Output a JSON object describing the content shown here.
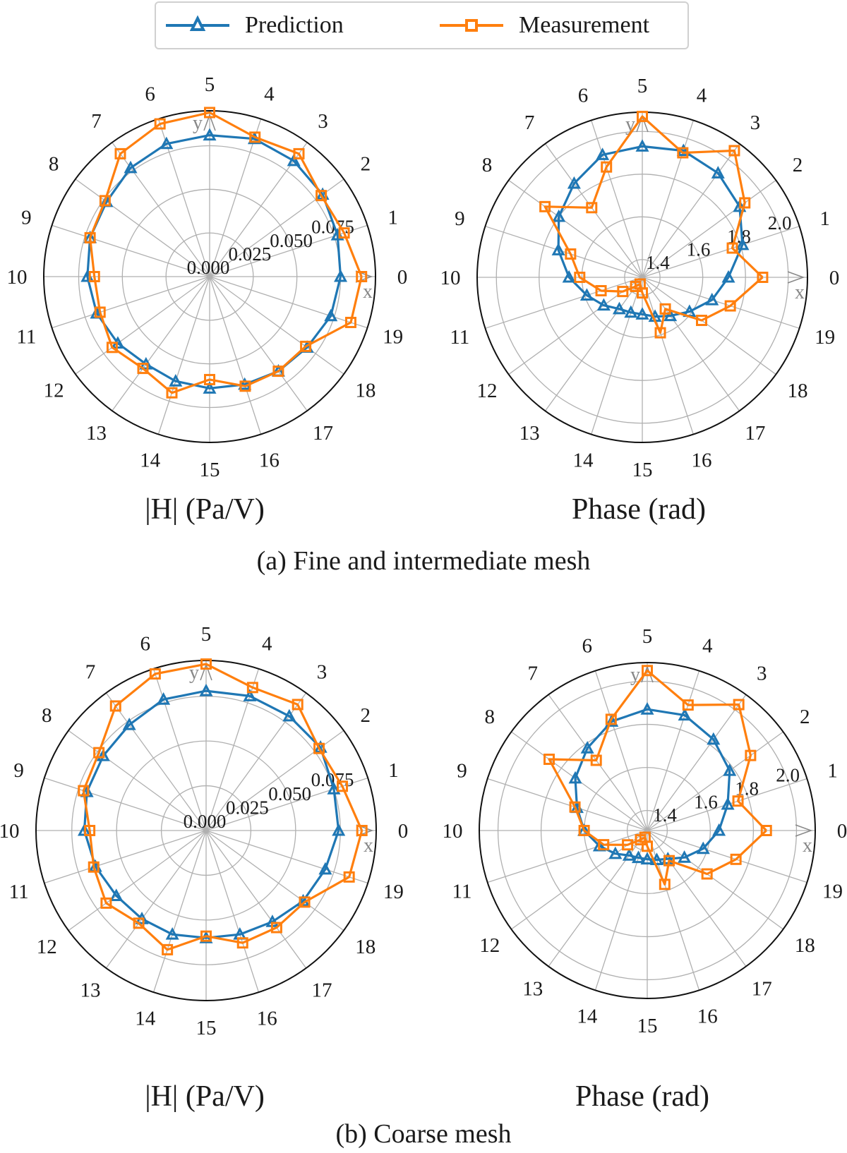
{
  "legend": {
    "prediction_label": "Prediction",
    "measurement_label": "Measurement"
  },
  "colors": {
    "prediction": "#1f77b4",
    "measurement": "#ff7f0e",
    "grid": "#b0b0b0",
    "axis_arrow": "#888888"
  },
  "captions": {
    "a": "(a) Fine and intermediate mesh",
    "b": "(b) Coarse mesh"
  },
  "chart_data": [
    {
      "type": "radar",
      "id": "a-magnitude",
      "title": "|H| (Pa/V)",
      "panel": "(a) Fine and intermediate mesh",
      "categories": [
        "0",
        "1",
        "2",
        "3",
        "4",
        "5",
        "6",
        "7",
        "8",
        "9",
        "10",
        "11",
        "12",
        "13",
        "14",
        "15",
        "16",
        "17",
        "18",
        "19"
      ],
      "radial_ticks": [
        "0.000",
        "0.025",
        "0.050",
        "0.075"
      ],
      "rlim": [
        0.0,
        0.095
      ],
      "axis_labels": {
        "x": "x",
        "y": "y"
      },
      "series": [
        {
          "name": "Prediction",
          "marker": "triangle",
          "values": [
            0.075,
            0.077,
            0.08,
            0.082,
            0.083,
            0.081,
            0.08,
            0.077,
            0.073,
            0.072,
            0.07,
            0.068,
            0.065,
            0.062,
            0.063,
            0.064,
            0.065,
            0.067,
            0.069,
            0.073
          ]
        },
        {
          "name": "Measurement",
          "marker": "square",
          "values": [
            0.087,
            0.081,
            0.079,
            0.087,
            0.084,
            0.094,
            0.092,
            0.087,
            0.074,
            0.072,
            0.066,
            0.066,
            0.069,
            0.065,
            0.07,
            0.059,
            0.066,
            0.067,
            0.068,
            0.085
          ]
        }
      ]
    },
    {
      "type": "radar",
      "id": "a-phase",
      "title": "Phase (rad)",
      "panel": "(a) Fine and intermediate mesh",
      "categories": [
        "0",
        "1",
        "2",
        "3",
        "4",
        "5",
        "6",
        "7",
        "8",
        "9",
        "10",
        "11",
        "12",
        "13",
        "14",
        "15",
        "16",
        "17",
        "18",
        "19"
      ],
      "radial_ticks": [
        "1.4",
        "1.6",
        "1.8",
        "2.0"
      ],
      "rlim": [
        1.317,
        2.09
      ],
      "axis_labels": {
        "x": "x",
        "y": "y"
      },
      "series": [
        {
          "name": "Prediction",
          "marker": "triangle",
          "values": [
            1.72,
            1.81,
            1.88,
            1.92,
            1.94,
            1.93,
            1.92,
            1.86,
            1.8,
            1.73,
            1.66,
            1.59,
            1.54,
            1.5,
            1.49,
            1.49,
            1.51,
            1.54,
            1.59,
            1.66
          ]
        },
        {
          "name": "Measurement",
          "marker": "square",
          "values": [
            1.88,
            1.76,
            1.91,
            2.05,
            1.93,
            2.07,
            1.86,
            1.72,
            1.88,
            1.67,
            1.61,
            1.52,
            1.43,
            1.37,
            1.35,
            1.39,
            1.59,
            1.5,
            1.66,
            1.75
          ]
        }
      ]
    },
    {
      "type": "radar",
      "id": "b-magnitude",
      "title": "|H| (Pa/V)",
      "panel": "(b) Coarse mesh",
      "categories": [
        "0",
        "1",
        "2",
        "3",
        "4",
        "5",
        "6",
        "7",
        "8",
        "9",
        "10",
        "11",
        "12",
        "13",
        "14",
        "15",
        "16",
        "17",
        "18",
        "19"
      ],
      "radial_ticks": [
        "0.000",
        "0.025",
        "0.050",
        "0.075"
      ],
      "rlim": [
        0.0,
        0.095
      ],
      "axis_labels": {
        "x": "x",
        "y": "y"
      },
      "series": [
        {
          "name": "Prediction",
          "marker": "triangle",
          "values": [
            0.074,
            0.075,
            0.079,
            0.079,
            0.079,
            0.078,
            0.077,
            0.073,
            0.071,
            0.07,
            0.068,
            0.065,
            0.062,
            0.061,
            0.061,
            0.06,
            0.061,
            0.063,
            0.067,
            0.07
          ]
        },
        {
          "name": "Measurement",
          "marker": "square",
          "values": [
            0.087,
            0.08,
            0.078,
            0.087,
            0.084,
            0.093,
            0.092,
            0.086,
            0.074,
            0.072,
            0.065,
            0.066,
            0.069,
            0.064,
            0.07,
            0.059,
            0.066,
            0.067,
            0.068,
            0.084
          ]
        }
      ]
    },
    {
      "type": "radar",
      "id": "b-phase",
      "title": "Phase (rad)",
      "panel": "(b) Coarse mesh",
      "categories": [
        "0",
        "1",
        "2",
        "3",
        "4",
        "5",
        "6",
        "7",
        "8",
        "9",
        "10",
        "11",
        "12",
        "13",
        "14",
        "15",
        "16",
        "17",
        "18",
        "19"
      ],
      "radial_ticks": [
        "1.4",
        "1.6",
        "1.8",
        "2.0"
      ],
      "rlim": [
        1.307,
        2.087
      ],
      "axis_labels": {
        "x": "x",
        "y": "y"
      },
      "series": [
        {
          "name": "Prediction",
          "marker": "triangle",
          "values": [
            1.64,
            1.7,
            1.78,
            1.83,
            1.87,
            1.87,
            1.84,
            1.78,
            1.72,
            1.65,
            1.6,
            1.54,
            1.49,
            1.45,
            1.44,
            1.44,
            1.45,
            1.47,
            1.52,
            1.58
          ]
        },
        {
          "name": "Measurement",
          "marker": "square",
          "values": [
            1.86,
            1.75,
            1.9,
            2.03,
            1.92,
            2.05,
            1.85,
            1.71,
            1.87,
            1.66,
            1.6,
            1.52,
            1.42,
            1.36,
            1.34,
            1.38,
            1.57,
            1.48,
            1.65,
            1.74
          ]
        }
      ]
    }
  ]
}
